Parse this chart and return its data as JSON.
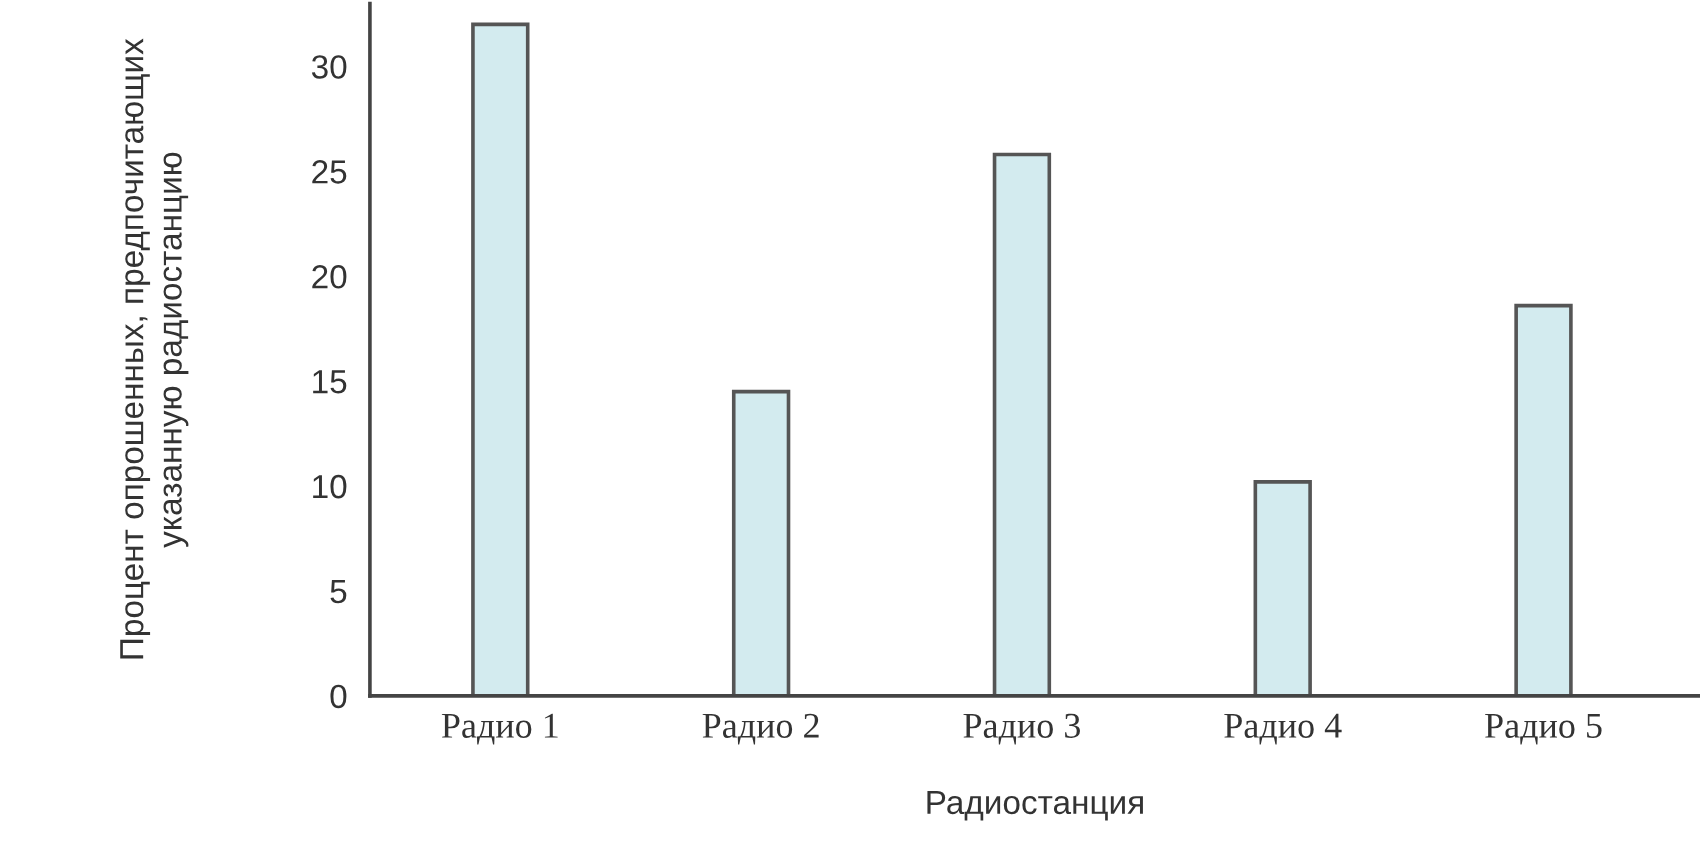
{
  "chart_data": {
    "type": "bar",
    "categories": [
      "Радио 1",
      "Радио 2",
      "Радио 3",
      "Радио 4",
      "Радио 5"
    ],
    "values": [
      32,
      14.5,
      25.8,
      10.2,
      18.6
    ],
    "color": "#d3ebef",
    "xlabel": "Радиостанция",
    "ylabel": "Процент опрошенных, предпочитающих\nуказанную радиостанцию",
    "ylim": [
      0,
      33
    ],
    "yticks": [
      0,
      5,
      10,
      15,
      20,
      25,
      30
    ]
  }
}
